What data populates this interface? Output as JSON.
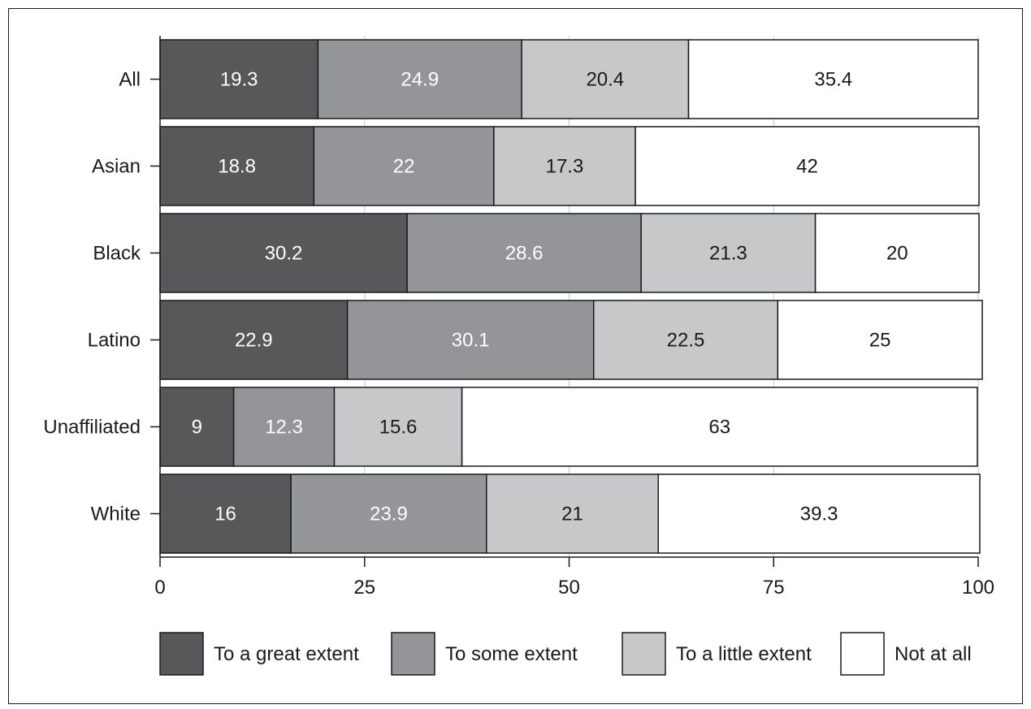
{
  "chart_data": {
    "type": "bar",
    "orientation": "horizontal",
    "stacked": true,
    "categories": [
      "All",
      "Asian",
      "Black",
      "Latino",
      "Unaffiliated",
      "White"
    ],
    "series": [
      {
        "name": "To a great extent",
        "color": "#58585a",
        "label_color": "#ffffff",
        "values": [
          19.3,
          18.8,
          30.2,
          22.9,
          9,
          16
        ]
      },
      {
        "name": "To some extent",
        "color": "#939598",
        "label_color": "#ffffff",
        "values": [
          24.9,
          22,
          28.6,
          30.1,
          12.3,
          23.9
        ]
      },
      {
        "name": "To a little extent",
        "color": "#c7c8ca",
        "label_color": "#1a1a1a",
        "values": [
          20.4,
          17.3,
          21.3,
          22.5,
          15.6,
          21
        ]
      },
      {
        "name": "Not at all",
        "color": "#ffffff",
        "label_color": "#1a1a1a",
        "values": [
          35.4,
          42,
          20,
          25,
          63,
          39.3
        ]
      }
    ],
    "xlim": [
      0,
      100
    ],
    "xticks": [
      "0",
      "25",
      "50",
      "75",
      "100"
    ],
    "grid": true,
    "legend": "bottom",
    "title": "",
    "xlabel": "",
    "ylabel": ""
  }
}
